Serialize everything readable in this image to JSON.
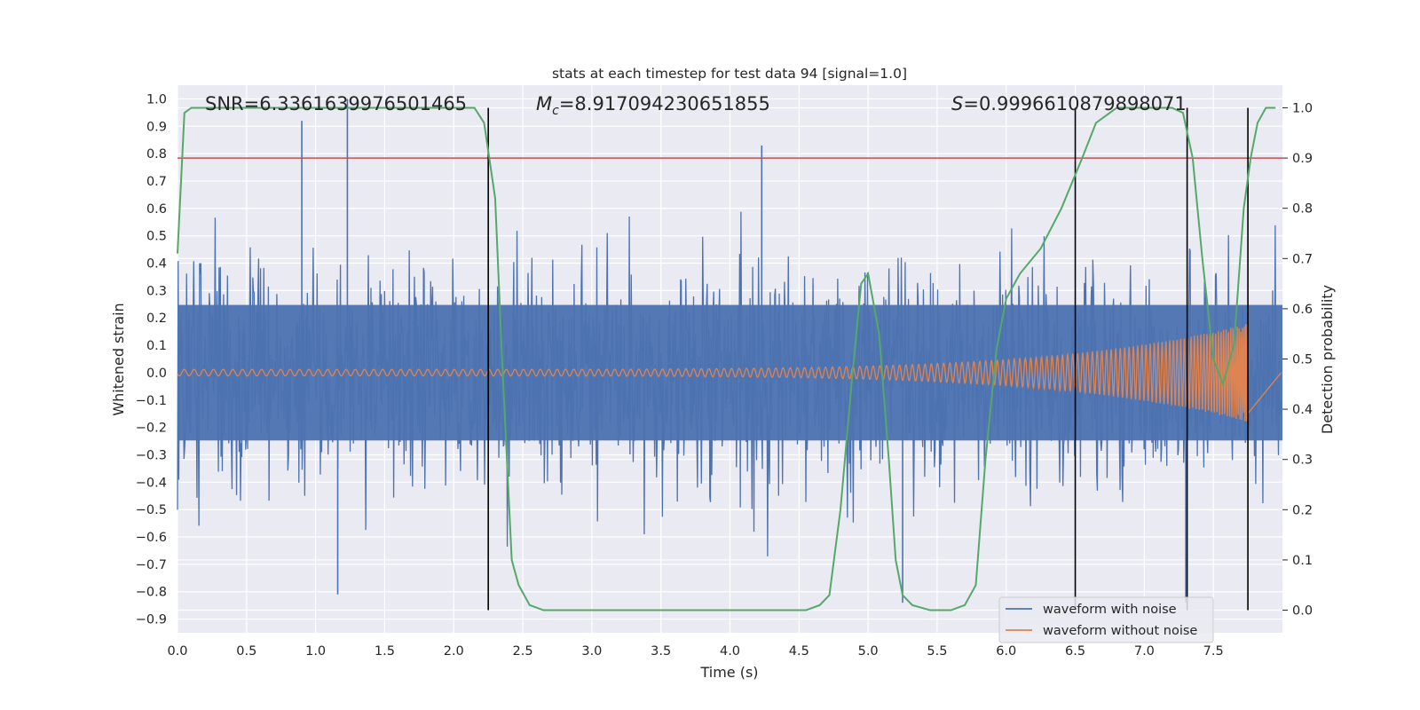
{
  "chart_data": {
    "type": "line",
    "title": "stats at each timestep for test data 94 [signal=1.0]",
    "xlabel": "Time (s)",
    "ylabel": "Whitened strain",
    "ylabel_right": "Detection probability",
    "xlim": [
      0,
      8.0
    ],
    "ylim": [
      -0.95,
      1.05
    ],
    "ylim_right": [
      -0.045,
      1.045
    ],
    "x_ticks": [
      "0.0",
      "0.5",
      "1.0",
      "1.5",
      "2.0",
      "2.5",
      "3.0",
      "3.5",
      "4.0",
      "4.5",
      "5.0",
      "5.5",
      "6.0",
      "6.5",
      "7.0",
      "7.5"
    ],
    "x_tick_values": [
      0,
      0.5,
      1,
      1.5,
      2,
      2.5,
      3,
      3.5,
      4,
      4.5,
      5,
      5.5,
      6,
      6.5,
      7,
      7.5
    ],
    "y_ticks": [
      "1.0",
      "0.9",
      "0.8",
      "0.7",
      "0.6",
      "0.5",
      "0.4",
      "0.3",
      "0.2",
      "0.1",
      "0.0",
      "−0.1",
      "−0.2",
      "−0.3",
      "−0.4",
      "−0.5",
      "−0.6",
      "−0.7",
      "−0.8",
      "−0.9"
    ],
    "y_tick_values": [
      1.0,
      0.9,
      0.8,
      0.7,
      0.6,
      0.5,
      0.4,
      0.3,
      0.2,
      0.1,
      0.0,
      -0.1,
      -0.2,
      -0.3,
      -0.4,
      -0.5,
      -0.6,
      -0.7,
      -0.8,
      -0.9
    ],
    "y_ticks_right": [
      "1.0",
      "0.9",
      "0.8",
      "0.7",
      "0.6",
      "0.5",
      "0.4",
      "0.3",
      "0.2",
      "0.1",
      "0.0"
    ],
    "y_tick_values_right": [
      1.0,
      0.9,
      0.8,
      0.7,
      0.6,
      0.5,
      0.4,
      0.3,
      0.2,
      0.1,
      0.0
    ],
    "grid": true,
    "annotations": {
      "snr": "SNR=6.3361639976501465",
      "mc_symbol": "M",
      "mc_sub": "c",
      "mc_value": "=8.917094230651855",
      "s_symbol": "S",
      "s_value": "=0.9996610879898071"
    },
    "threshold_right": 0.9,
    "vlines_x": [
      2.25,
      6.5,
      7.31,
      7.75
    ],
    "noise_envelope": {
      "typical_upper": 0.45,
      "typical_lower": -0.45,
      "peaks": [
        [
          0.9,
          0.92
        ],
        [
          1.23,
          1.0
        ],
        [
          4.23,
          0.83
        ],
        [
          5.25,
          -0.84
        ],
        [
          1.16,
          -0.81
        ],
        [
          7.3,
          -0.84
        ]
      ]
    },
    "detection_probability": {
      "x": [
        0.0,
        0.05,
        0.1,
        0.2,
        0.4,
        1.0,
        2.0,
        2.15,
        2.22,
        2.3,
        2.35,
        2.42,
        2.47,
        2.55,
        2.65,
        3.0,
        4.0,
        4.55,
        4.65,
        4.72,
        4.8,
        4.88,
        4.95,
        5.0,
        5.08,
        5.15,
        5.2,
        5.25,
        5.32,
        5.45,
        5.6,
        5.7,
        5.78,
        5.85,
        5.93,
        6.0,
        6.1,
        6.25,
        6.4,
        6.55,
        6.65,
        6.8,
        7.0,
        7.2,
        7.28,
        7.35,
        7.42,
        7.5,
        7.57,
        7.65,
        7.72,
        7.77,
        7.82,
        7.88,
        7.95
      ],
      "y": [
        0.71,
        0.99,
        1.0,
        1.0,
        1.0,
        1.0,
        1.0,
        1.0,
        0.97,
        0.82,
        0.5,
        0.1,
        0.05,
        0.01,
        0.0,
        0.0,
        0.0,
        0.0,
        0.01,
        0.03,
        0.2,
        0.45,
        0.65,
        0.67,
        0.55,
        0.3,
        0.1,
        0.03,
        0.01,
        0.0,
        0.0,
        0.01,
        0.05,
        0.3,
        0.52,
        0.62,
        0.67,
        0.72,
        0.8,
        0.9,
        0.97,
        1.0,
        1.0,
        1.0,
        0.99,
        0.9,
        0.7,
        0.5,
        0.45,
        0.53,
        0.8,
        0.9,
        0.97,
        1.0,
        1.0
      ]
    },
    "waveform_without_noise": {
      "duration": 7.75,
      "amplitude_start": 0.012,
      "amplitude_end": 0.18
    },
    "series": [
      {
        "name": "waveform with noise",
        "color": "#4c72b0"
      },
      {
        "name": "waveform without noise",
        "color": "#dd8452"
      }
    ],
    "colors": {
      "plot_bg": "#eaeaf2",
      "grid": "#ffffff",
      "probability": "#55a868",
      "threshold": "#c44e52",
      "vline": "#000000"
    },
    "legend_position": "lower-right"
  }
}
